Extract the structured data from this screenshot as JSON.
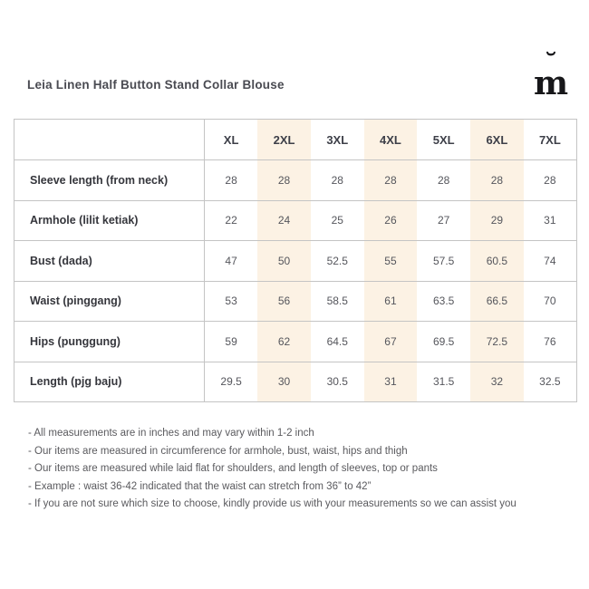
{
  "header": {
    "title": "Leia Linen Half Button Stand Collar Blouse"
  },
  "brand": {
    "logo_letter": "m",
    "logo_accent": "˘"
  },
  "size_chart": {
    "columns": [
      "XL",
      "2XL",
      "3XL",
      "4XL",
      "5XL",
      "6XL",
      "7XL"
    ],
    "highlighted_columns": [
      "2XL",
      "4XL",
      "6XL"
    ],
    "highlight_color": "#fcf2e4",
    "rows": [
      {
        "label": "Sleeve length (from neck)",
        "values": [
          "28",
          "28",
          "28",
          "28",
          "28",
          "28",
          "28"
        ]
      },
      {
        "label": "Armhole (lilit ketiak)",
        "values": [
          "22",
          "24",
          "25",
          "26",
          "27",
          "29",
          "31"
        ]
      },
      {
        "label": "Bust (dada)",
        "values": [
          "47",
          "50",
          "52.5",
          "55",
          "57.5",
          "60.5",
          "74"
        ]
      },
      {
        "label": "Waist (pinggang)",
        "values": [
          "53",
          "56",
          "58.5",
          "61",
          "63.5",
          "66.5",
          "70"
        ]
      },
      {
        "label": "Hips (punggung)",
        "values": [
          "59",
          "62",
          "64.5",
          "67",
          "69.5",
          "72.5",
          "76"
        ]
      },
      {
        "label": "Length (pjg baju)",
        "values": [
          "29.5",
          "30",
          "30.5",
          "31",
          "31.5",
          "32",
          "32.5"
        ]
      }
    ]
  },
  "notes": [
    "- All measurements are in inches and may vary within 1-2 inch",
    "- Our items are measured in circumference for armhole, bust, waist, hips and thigh",
    "- Our items are measured while laid flat for shoulders, and length of sleeves, top or pants",
    "- Example : waist 36-42 indicated that the waist can stretch from 36” to 42”",
    "- If you are not sure which size to choose, kindly provide us with your measurements so we can assist you"
  ]
}
